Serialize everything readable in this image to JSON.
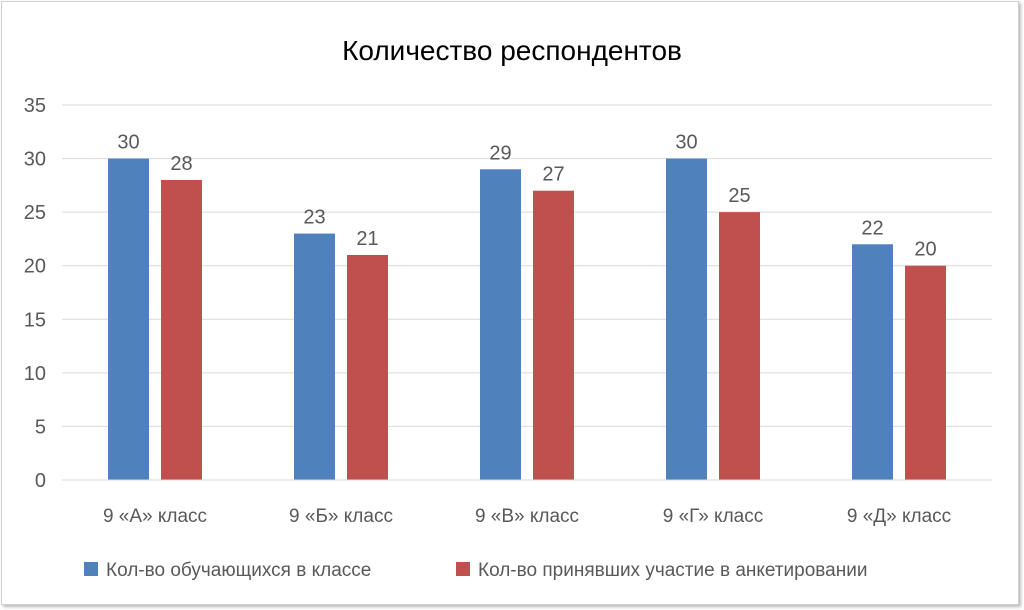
{
  "chart_data": {
    "type": "bar",
    "title": "Количество респондентов",
    "categories": [
      "9 «А» класс",
      "9 «Б» класс",
      "9 «В» класс",
      "9 «Г» класс",
      "9 «Д» класс"
    ],
    "series": [
      {
        "name": "Кол-во обучающихся в классе",
        "color": "#4F81BD",
        "values": [
          30,
          23,
          29,
          30,
          22
        ]
      },
      {
        "name": "Кол-во принявших участие в анкетировании",
        "color": "#C0504D",
        "values": [
          28,
          21,
          27,
          25,
          20
        ]
      }
    ],
    "xlabel": "",
    "ylabel": "",
    "ylim": [
      0,
      35
    ],
    "yticks": [
      0,
      5,
      10,
      15,
      20,
      25,
      30,
      35
    ],
    "grid": true,
    "legend": "bottom",
    "data_labels": true
  }
}
